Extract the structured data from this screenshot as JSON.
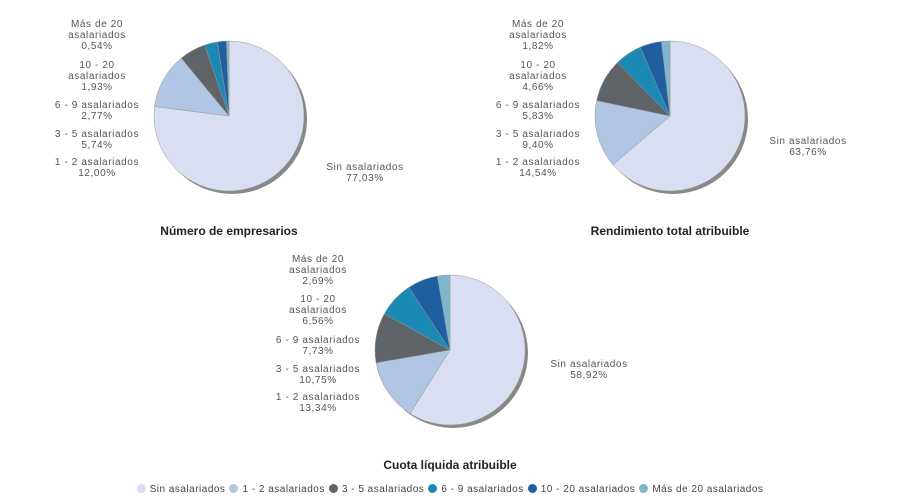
{
  "colors": [
    "#d9dff0",
    "#b0c6e4",
    "#5f6468",
    "#1a8ab4",
    "#1f5fa0",
    "#7fb6cc"
  ],
  "legend": [
    "Sin asalariados",
    "1 - 2 asalariados",
    "3 - 5 asalariados",
    "6 - 9 asalariados",
    "10 - 20 asalariados",
    "Más de 20 asalariados"
  ],
  "chart_data": [
    {
      "type": "pie",
      "title": "Número de empresarios",
      "labels": [
        "Sin asalariados",
        "1 - 2 asalariados",
        "3 - 5 asalariados",
        "6 - 9 asalariados",
        "10 - 20 asalariados",
        "Más de 20 asalariados"
      ],
      "values": [
        77.03,
        12.0,
        5.74,
        2.77,
        1.93,
        0.54
      ],
      "value_labels": [
        "77,03%",
        "12,00%",
        "5,74%",
        "2,77%",
        "1,93%",
        "0,54%"
      ]
    },
    {
      "type": "pie",
      "title": "Rendimiento total atribuible",
      "labels": [
        "Sin asalariados",
        "1 - 2 asalariados",
        "3 - 5 asalariados",
        "6 - 9 asalariados",
        "10 - 20 asalariados",
        "Más de 20 asalariados"
      ],
      "values": [
        63.76,
        14.54,
        9.4,
        5.83,
        4.66,
        1.82
      ],
      "value_labels": [
        "63,76%",
        "14,54%",
        "9,40%",
        "5,83%",
        "4,66%",
        "1,82%"
      ]
    },
    {
      "type": "pie",
      "title": "Cuota líquida atribuible",
      "labels": [
        "Sin asalariados",
        "1 - 2 asalariados",
        "3 - 5 asalariados",
        "6 - 9 asalariados",
        "10 - 20 asalariados",
        "Más de 20 asalariados"
      ],
      "values": [
        58.92,
        13.34,
        10.75,
        7.73,
        6.56,
        2.69
      ],
      "value_labels": [
        "58,92%",
        "13,34%",
        "10,75%",
        "7,73%",
        "6,56%",
        "2,69%"
      ]
    }
  ]
}
